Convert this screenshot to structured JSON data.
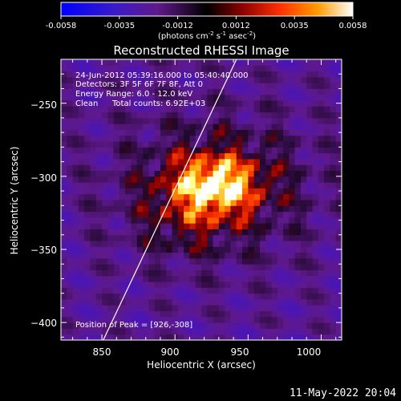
{
  "colorbar": {
    "ticks": [
      "-0.0058",
      "-0.0035",
      "-0.0012",
      "0.0012",
      "0.0035",
      "0.0058"
    ],
    "units_main": "(photons cm",
    "units_sup1": "-2",
    "units_mid1": " s",
    "units_sup2": "-1",
    "units_mid2": " asec",
    "units_sup3": "-2",
    "units_end": ")",
    "range": [
      -0.0058,
      0.0058
    ]
  },
  "annotations": {
    "time_range": "24-Jun-2012 05:39:16.000 to 05:40:40.000",
    "detectors": "Detectors: 3F 5F 6F 7F 8F, Att 0",
    "energy": "Energy Range: 6.0 - 12.0 keV",
    "clean_label": "Clean",
    "total_counts": "Total counts: 6.92E+03",
    "peak": "Position of Peak = [926,-308]"
  },
  "footer": {
    "date": "11-May-2022 20:04"
  },
  "chart_data": {
    "type": "heatmap",
    "title": "Reconstructed RHESSI Image",
    "xlabel": "Heliocentric X (arcsec)",
    "ylabel": "Heliocentric Y (arcsec)",
    "xlim": [
      822,
      1014
    ],
    "ylim": [
      -412,
      -220
    ],
    "x_ticks": [
      850,
      900,
      950,
      1000
    ],
    "y_ticks": [
      -250,
      -300,
      -350,
      -400
    ],
    "x_tick_labels": [
      "850",
      "900",
      "950",
      "1000"
    ],
    "y_tick_labels": [
      "−250",
      "−300",
      "−350",
      "−400"
    ],
    "peak_position": [
      926,
      -308
    ],
    "limb_line": [
      [
        850,
        -414
      ],
      [
        943,
        -218
      ]
    ],
    "colormap_stops": [
      "#0000ff",
      "#5a0e8c",
      "#000000",
      "#8b0000",
      "#ff3000",
      "#ff9c00",
      "#ffff80",
      "#ffffff"
    ]
  }
}
